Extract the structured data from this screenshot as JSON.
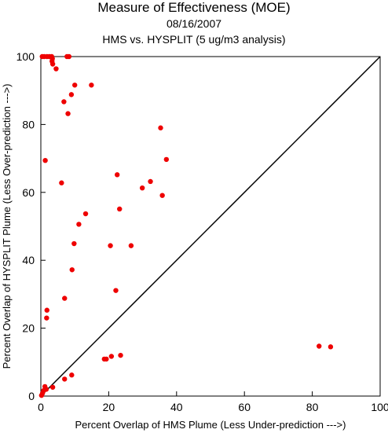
{
  "chart_data": {
    "type": "scatter",
    "title": "Measure of Effectiveness (MOE)",
    "subtitle": "08/16/2007",
    "subtitle2": "HMS vs. HYSPLIT  (5 ug/m3 analysis)",
    "xlabel": "Percent Overlap of HMS Plume (Less Under-prediction --->)",
    "ylabel": "Percent Overlap of HYSPLIT Plume (Less Over-prediction --->)",
    "xlim": [
      0,
      100
    ],
    "ylim": [
      0,
      100
    ],
    "xticks": [
      "0",
      "20",
      "40",
      "60",
      "80",
      "100"
    ],
    "yticks": [
      "0",
      "20",
      "40",
      "60",
      "80",
      "100"
    ],
    "grid": false,
    "reference_line": "y = x",
    "point_color": "#ee0000",
    "line_color": "#000000",
    "points": [
      {
        "x": 0.4,
        "y": 100
      },
      {
        "x": 1.0,
        "y": 100
      },
      {
        "x": 1.8,
        "y": 100
      },
      {
        "x": 2.5,
        "y": 100
      },
      {
        "x": 3.2,
        "y": 100
      },
      {
        "x": 3.4,
        "y": 99.4
      },
      {
        "x": 3.3,
        "y": 98.6
      },
      {
        "x": 3.5,
        "y": 97.8
      },
      {
        "x": 4.5,
        "y": 96.4
      },
      {
        "x": 7.7,
        "y": 100
      },
      {
        "x": 8.3,
        "y": 100
      },
      {
        "x": 10.0,
        "y": 91.6
      },
      {
        "x": 14.9,
        "y": 91.6
      },
      {
        "x": 9.0,
        "y": 88.8
      },
      {
        "x": 6.8,
        "y": 86.7
      },
      {
        "x": 8.0,
        "y": 83.2
      },
      {
        "x": 35.3,
        "y": 79.0
      },
      {
        "x": 1.3,
        "y": 69.4
      },
      {
        "x": 37.0,
        "y": 69.7
      },
      {
        "x": 22.5,
        "y": 65.2
      },
      {
        "x": 6.1,
        "y": 62.8
      },
      {
        "x": 32.3,
        "y": 63.2
      },
      {
        "x": 29.9,
        "y": 61.3
      },
      {
        "x": 35.8,
        "y": 59.1
      },
      {
        "x": 23.2,
        "y": 55.1
      },
      {
        "x": 13.2,
        "y": 53.7
      },
      {
        "x": 11.2,
        "y": 50.6
      },
      {
        "x": 20.5,
        "y": 44.3
      },
      {
        "x": 26.6,
        "y": 44.3
      },
      {
        "x": 9.8,
        "y": 44.9
      },
      {
        "x": 9.2,
        "y": 37.2
      },
      {
        "x": 22.1,
        "y": 31.1
      },
      {
        "x": 7.0,
        "y": 28.8
      },
      {
        "x": 1.8,
        "y": 25.3
      },
      {
        "x": 1.7,
        "y": 23.0
      },
      {
        "x": 82.0,
        "y": 14.7
      },
      {
        "x": 85.4,
        "y": 14.5
      },
      {
        "x": 23.5,
        "y": 12.0
      },
      {
        "x": 20.8,
        "y": 11.7
      },
      {
        "x": 18.7,
        "y": 10.9
      },
      {
        "x": 19.3,
        "y": 10.9
      },
      {
        "x": 9.1,
        "y": 6.2
      },
      {
        "x": 7.0,
        "y": 5.0
      },
      {
        "x": 3.5,
        "y": 2.6
      },
      {
        "x": 1.6,
        "y": 2.0
      },
      {
        "x": 1.2,
        "y": 2.8
      },
      {
        "x": 0.8,
        "y": 1.6
      },
      {
        "x": 0.5,
        "y": 0.8
      },
      {
        "x": 0.2,
        "y": 0.2
      }
    ]
  }
}
